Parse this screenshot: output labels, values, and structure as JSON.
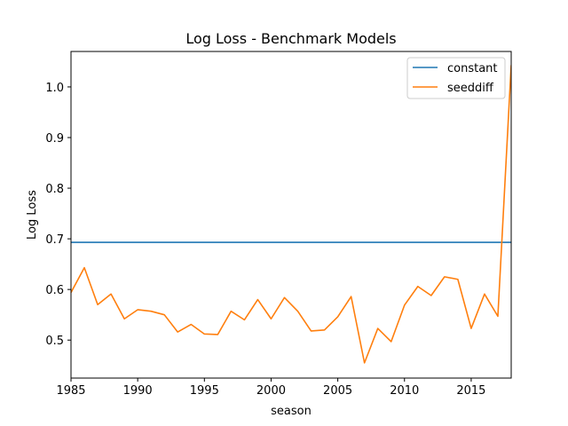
{
  "chart_data": {
    "type": "line",
    "title": "Log Loss - Benchmark Models",
    "xlabel": "season",
    "ylabel": "Log Loss",
    "xlim": [
      1985,
      2018
    ],
    "ylim": [
      0.425,
      1.07
    ],
    "x_ticks": [
      1985,
      1990,
      1995,
      2000,
      2005,
      2010,
      2015
    ],
    "x_tick_labels": [
      "1985",
      "1990",
      "1995",
      "2000",
      "2005",
      "2010",
      "2015"
    ],
    "y_ticks": [
      0.5,
      0.6,
      0.7,
      0.8,
      0.9,
      1.0
    ],
    "y_tick_labels": [
      "0.5",
      "0.6",
      "0.7",
      "0.8",
      "0.9",
      "1.0"
    ],
    "grid": false,
    "legend_position": "top-right",
    "x": [
      1985,
      1986,
      1987,
      1988,
      1989,
      1990,
      1991,
      1992,
      1993,
      1994,
      1995,
      1996,
      1997,
      1998,
      1999,
      2000,
      2001,
      2002,
      2003,
      2004,
      2005,
      2006,
      2007,
      2008,
      2009,
      2010,
      2011,
      2012,
      2013,
      2014,
      2015,
      2016,
      2017,
      2018
    ],
    "series": [
      {
        "name": "constant",
        "color": "#1f77b4",
        "values": [
          0.693,
          0.693,
          0.693,
          0.693,
          0.693,
          0.693,
          0.693,
          0.693,
          0.693,
          0.693,
          0.693,
          0.693,
          0.693,
          0.693,
          0.693,
          0.693,
          0.693,
          0.693,
          0.693,
          0.693,
          0.693,
          0.693,
          0.693,
          0.693,
          0.693,
          0.693,
          0.693,
          0.693,
          0.693,
          0.693,
          0.693,
          0.693,
          0.693,
          0.693
        ]
      },
      {
        "name": "seeddiff",
        "color": "#ff7f0e",
        "values": [
          0.594,
          0.643,
          0.57,
          0.591,
          0.542,
          0.56,
          0.557,
          0.55,
          0.516,
          0.531,
          0.512,
          0.511,
          0.557,
          0.54,
          0.58,
          0.542,
          0.584,
          0.557,
          0.518,
          0.52,
          0.546,
          0.586,
          0.455,
          0.523,
          0.497,
          0.569,
          0.606,
          0.588,
          0.625,
          0.62,
          0.523,
          0.591,
          0.547,
          1.043
        ]
      }
    ]
  }
}
